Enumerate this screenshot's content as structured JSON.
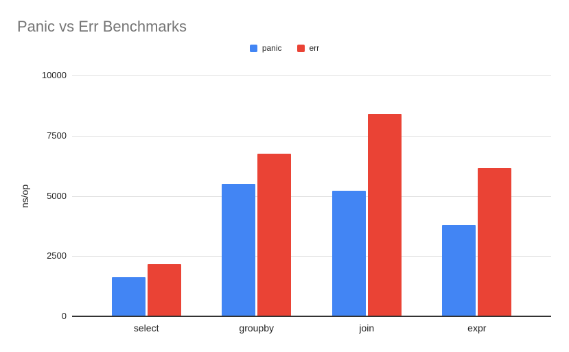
{
  "chart_data": {
    "type": "bar",
    "title": "Panic vs Err Benchmarks",
    "xlabel": "",
    "ylabel": "ns/op",
    "categories": [
      "select",
      "groupby",
      "join",
      "expr"
    ],
    "series": [
      {
        "name": "panic",
        "color": "#4285F4",
        "values": [
          1630,
          5500,
          5200,
          3800
        ]
      },
      {
        "name": "err",
        "color": "#EA4335",
        "values": [
          2160,
          6750,
          8400,
          6150
        ]
      }
    ],
    "ylim": [
      0,
      10000
    ],
    "yticks": [
      0,
      2500,
      5000,
      7500,
      10000
    ],
    "grid": true,
    "legend_position": "top-center"
  },
  "colors": {
    "background": "#ffffff",
    "title_text": "#757575",
    "axis_text": "#222222",
    "gridline": "#e0e0e0",
    "baseline": "#333333"
  }
}
